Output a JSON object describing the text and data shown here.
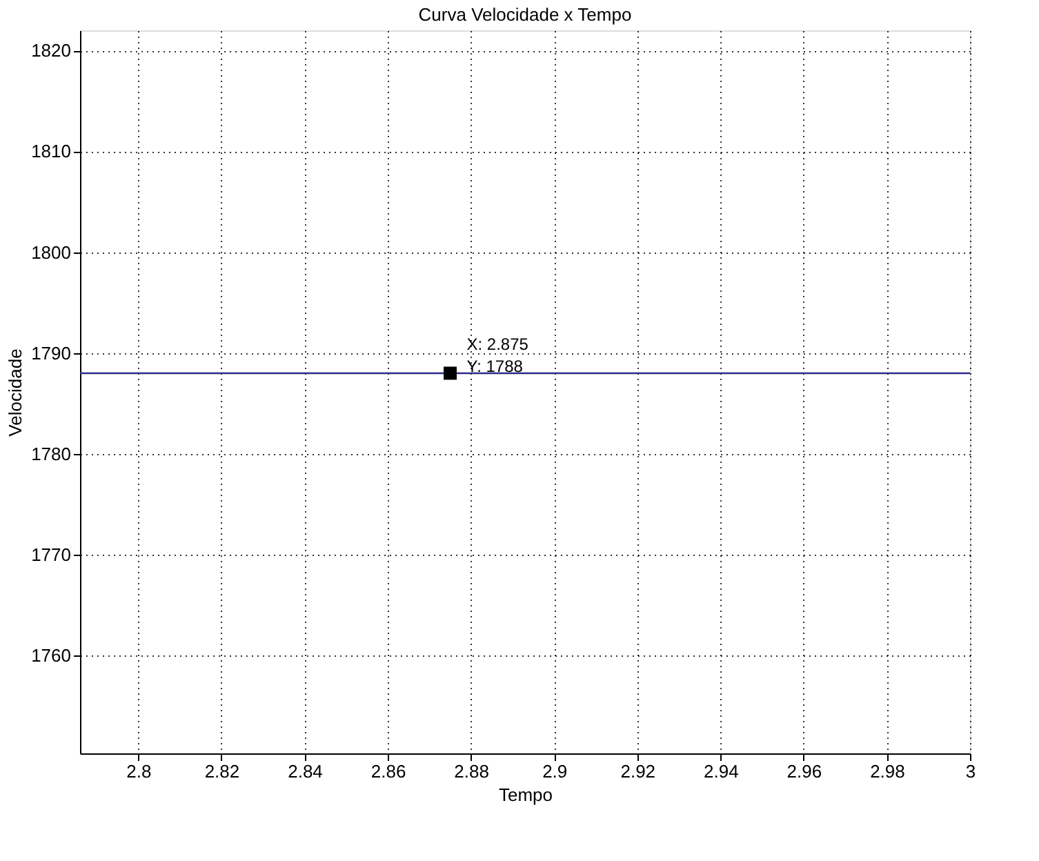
{
  "chart_data": {
    "type": "line",
    "title": "Curva Velocidade x Tempo",
    "xlabel": "Tempo",
    "ylabel": "Velocidade",
    "x": [
      2.786,
      3.0
    ],
    "series": [
      {
        "color": "#2a2a8a",
        "values": [
          1788,
          1788
        ]
      }
    ],
    "xlim": [
      2.786,
      3.0
    ],
    "xticks": [
      2.8,
      2.82,
      2.84,
      2.86,
      2.88,
      2.9,
      2.92,
      2.94,
      2.96,
      2.98,
      3
    ],
    "ylim": [
      1750.3,
      1822
    ],
    "yticks": [
      1760,
      1770,
      1780,
      1790,
      1800,
      1810,
      1820
    ],
    "grid": true,
    "line_style": "solid",
    "annotations": [
      {
        "text": "X: 2.875\nY: 1788",
        "x": 2.875,
        "y": 1788
      }
    ]
  }
}
